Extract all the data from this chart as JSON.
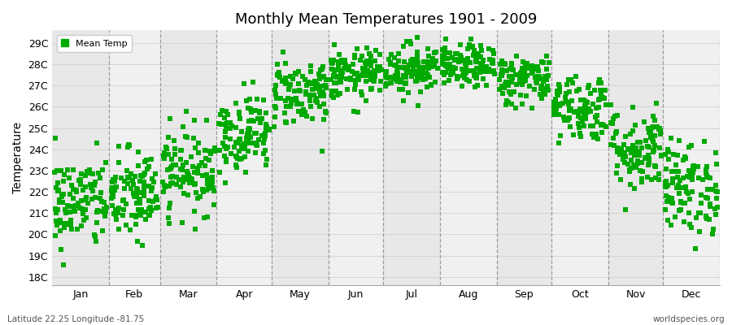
{
  "title": "Monthly Mean Temperatures 1901 - 2009",
  "ylabel": "Temperature",
  "ytick_labels": [
    "18C",
    "19C",
    "20C",
    "21C",
    "22C",
    "23C",
    "24C",
    "25C",
    "26C",
    "27C",
    "28C",
    "29C"
  ],
  "ytick_values": [
    18,
    19,
    20,
    21,
    22,
    23,
    24,
    25,
    26,
    27,
    28,
    29
  ],
  "ylim": [
    17.6,
    29.6
  ],
  "month_labels": [
    "Jan",
    "Feb",
    "Mar",
    "Apr",
    "May",
    "Jun",
    "Jul",
    "Aug",
    "Sep",
    "Oct",
    "Nov",
    "Dec"
  ],
  "legend_label": "Mean Temp",
  "marker_color": "#00aa00",
  "marker_size": 4,
  "subtitle_left": "Latitude 22.25 Longitude -81.75",
  "subtitle_right": "worldspecies.org",
  "background_color": "#ffffff",
  "band_colors": [
    "#e8e8e8",
    "#f0f0f0",
    "#e8e8e8",
    "#f0f0f0",
    "#e8e8e8",
    "#f0f0f0",
    "#e8e8e8",
    "#f0f0f0",
    "#e8e8e8",
    "#f0f0f0",
    "#e8e8e8",
    "#f0f0f0"
  ],
  "vline_color": "#888888",
  "n_years": 109,
  "monthly_mean": [
    21.5,
    21.8,
    23.0,
    24.8,
    26.7,
    27.5,
    27.8,
    27.9,
    27.3,
    26.0,
    24.0,
    22.2
  ],
  "monthly_std": [
    1.1,
    1.1,
    1.0,
    0.9,
    0.8,
    0.6,
    0.6,
    0.5,
    0.6,
    0.8,
    1.0,
    1.1
  ],
  "days_in_month": [
    31,
    28,
    31,
    30,
    31,
    30,
    31,
    31,
    30,
    31,
    30,
    31
  ]
}
